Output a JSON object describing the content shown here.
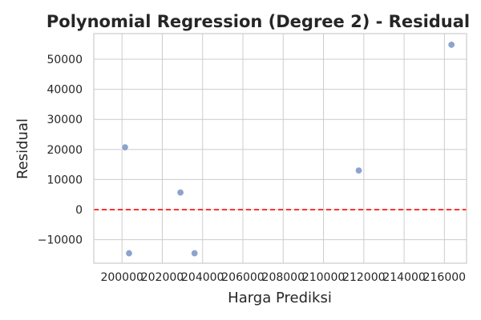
{
  "chart_data": {
    "type": "scatter",
    "title": "Polynomial Regression (Degree 2) - Residual",
    "xlabel": "Harga Prediksi",
    "ylabel": "Residual",
    "xlim": [
      198600,
      217100
    ],
    "ylim": [
      -17800,
      58500
    ],
    "xticks": [
      200000,
      202000,
      204000,
      206000,
      208000,
      210000,
      212000,
      214000,
      216000
    ],
    "xtick_labels": [
      "200000",
      "202000",
      "204000",
      "206000",
      "208000",
      "210000",
      "212000",
      "214000",
      "216000"
    ],
    "yticks": [
      -10000,
      0,
      10000,
      20000,
      30000,
      40000,
      50000
    ],
    "ytick_labels": [
      "−10000",
      "0",
      "10000",
      "20000",
      "30000",
      "40000",
      "50000"
    ],
    "grid": true,
    "reference_line": {
      "y": 0,
      "style": "dashed",
      "color": "#ff0000"
    },
    "point_color": "#8da3cf",
    "points": [
      {
        "x": 200150,
        "y": 20700
      },
      {
        "x": 200350,
        "y": -14500
      },
      {
        "x": 202900,
        "y": 5700
      },
      {
        "x": 203600,
        "y": -14500
      },
      {
        "x": 211750,
        "y": 13000
      },
      {
        "x": 216350,
        "y": 54800
      }
    ]
  }
}
